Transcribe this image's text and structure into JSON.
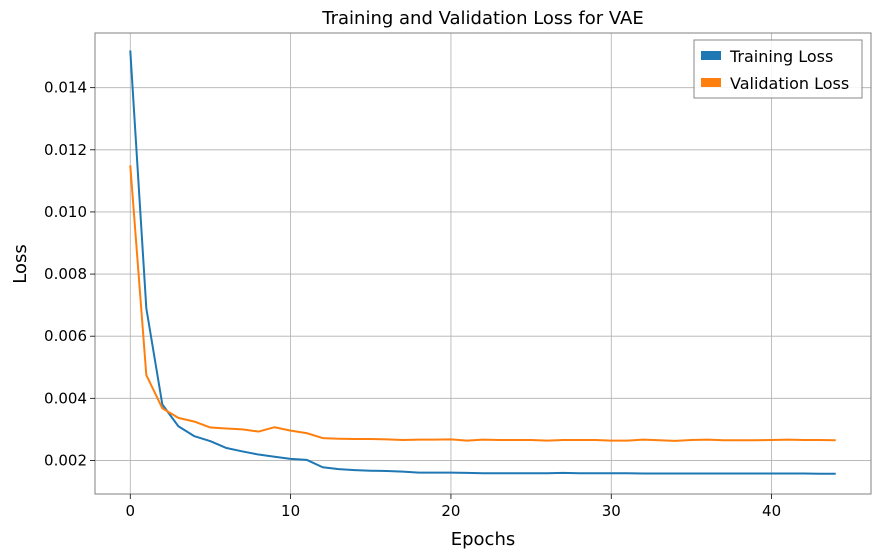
{
  "chart_data": {
    "type": "line",
    "title": "Training and Validation Loss for VAE",
    "xlabel": "Epochs",
    "ylabel": "Loss",
    "xlim": [
      -2.2,
      46.2
    ],
    "ylim": [
      0.00092,
      0.01576
    ],
    "xticks": [
      0,
      10,
      20,
      30,
      40
    ],
    "yticks": [
      0.002,
      0.004,
      0.006,
      0.008,
      0.01,
      0.012,
      0.014
    ],
    "xtick_labels": [
      "0",
      "10",
      "20",
      "30",
      "40"
    ],
    "ytick_labels": [
      "0.002",
      "0.004",
      "0.006",
      "0.008",
      "0.010",
      "0.012",
      "0.014"
    ],
    "grid": true,
    "legend_position": "top-right",
    "x": [
      0,
      1,
      2,
      3,
      4,
      5,
      6,
      7,
      8,
      9,
      10,
      11,
      12,
      13,
      14,
      15,
      16,
      17,
      18,
      19,
      20,
      21,
      22,
      23,
      24,
      25,
      26,
      27,
      28,
      29,
      30,
      31,
      32,
      33,
      34,
      35,
      36,
      37,
      38,
      39,
      40,
      41,
      42,
      43,
      44
    ],
    "series": [
      {
        "name": "Training Loss",
        "color": "#1f77b4",
        "values": [
          0.0152,
          0.0069,
          0.0038,
          0.0031,
          0.00278,
          0.00262,
          0.0024,
          0.00229,
          0.00219,
          0.00212,
          0.00205,
          0.00202,
          0.00178,
          0.00172,
          0.00169,
          0.00167,
          0.00166,
          0.00164,
          0.00161,
          0.00161,
          0.00161,
          0.0016,
          0.00159,
          0.00159,
          0.00159,
          0.00159,
          0.00159,
          0.0016,
          0.00159,
          0.00159,
          0.00159,
          0.00159,
          0.00158,
          0.00158,
          0.00158,
          0.00158,
          0.00158,
          0.00158,
          0.00158,
          0.00158,
          0.00158,
          0.00158,
          0.00158,
          0.00157,
          0.00157
        ]
      },
      {
        "name": "Validation Loss",
        "color": "#ff7f0e",
        "values": [
          0.0115,
          0.00475,
          0.00368,
          0.00337,
          0.00325,
          0.00306,
          0.00303,
          0.003,
          0.00293,
          0.00307,
          0.00296,
          0.00288,
          0.00272,
          0.0027,
          0.00269,
          0.00269,
          0.00268,
          0.00266,
          0.00267,
          0.00267,
          0.00268,
          0.00264,
          0.00267,
          0.00266,
          0.00266,
          0.00266,
          0.00264,
          0.00266,
          0.00266,
          0.00266,
          0.00264,
          0.00264,
          0.00267,
          0.00265,
          0.00263,
          0.00266,
          0.00267,
          0.00265,
          0.00265,
          0.00265,
          0.00266,
          0.00267,
          0.00266,
          0.00266,
          0.00265
        ]
      }
    ]
  }
}
